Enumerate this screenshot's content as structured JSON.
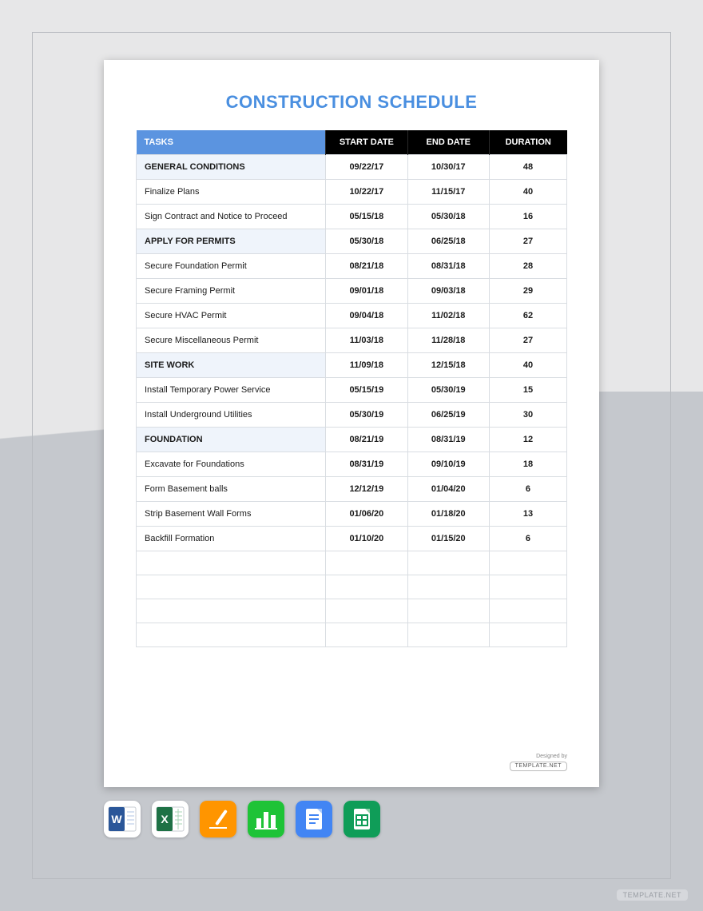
{
  "title": "CONSTRUCTION SCHEDULE",
  "colors": {
    "title": "#4a8fe0",
    "header_tasks_bg": "#5b94e0",
    "header_other_bg": "#000000",
    "section_bg": "#eff4fb",
    "border": "#d9dde2",
    "page_bg": "#ffffff",
    "outer_bg_top": "#e7e7e8",
    "outer_bg_bottom": "#c5c8cd"
  },
  "table": {
    "columns": [
      "TASKS",
      "START DATE",
      "END DATE",
      "DURATION"
    ],
    "rows": [
      {
        "type": "section",
        "task": "GENERAL CONDITIONS",
        "start": "09/22/17",
        "end": "10/30/17",
        "dur": "48"
      },
      {
        "type": "item",
        "task": "Finalize Plans",
        "start": "10/22/17",
        "end": "11/15/17",
        "dur": "40"
      },
      {
        "type": "item",
        "task": "Sign Contract and Notice to Proceed",
        "start": "05/15/18",
        "end": "05/30/18",
        "dur": "16"
      },
      {
        "type": "section",
        "task": "APPLY FOR PERMITS",
        "start": "05/30/18",
        "end": "06/25/18",
        "dur": "27"
      },
      {
        "type": "item",
        "task": "Secure Foundation Permit",
        "start": "08/21/18",
        "end": "08/31/18",
        "dur": "28"
      },
      {
        "type": "item",
        "task": "Secure Framing Permit",
        "start": "09/01/18",
        "end": "09/03/18",
        "dur": "29"
      },
      {
        "type": "item",
        "task": "Secure HVAC Permit",
        "start": "09/04/18",
        "end": "11/02/18",
        "dur": "62"
      },
      {
        "type": "item",
        "task": "Secure Miscellaneous Permit",
        "start": "11/03/18",
        "end": "11/28/18",
        "dur": "27"
      },
      {
        "type": "section",
        "task": "SITE WORK",
        "start": "11/09/18",
        "end": "12/15/18",
        "dur": "40"
      },
      {
        "type": "item",
        "task": "Install Temporary Power Service",
        "start": "05/15/19",
        "end": "05/30/19",
        "dur": "15"
      },
      {
        "type": "item",
        "task": "Install Underground Utilities",
        "start": "05/30/19",
        "end": "06/25/19",
        "dur": "30"
      },
      {
        "type": "section",
        "task": "FOUNDATION",
        "start": "08/21/19",
        "end": "08/31/19",
        "dur": "12"
      },
      {
        "type": "item",
        "task": "Excavate for Foundations",
        "start": "08/31/19",
        "end": "09/10/19",
        "dur": "18"
      },
      {
        "type": "item",
        "task": "Form Basement balls",
        "start": "12/12/19",
        "end": "01/04/20",
        "dur": "6"
      },
      {
        "type": "item",
        "task": "Strip Basement Wall Forms",
        "start": "01/06/20",
        "end": "01/18/20",
        "dur": "13"
      },
      {
        "type": "item",
        "task": "Backfill Formation",
        "start": "01/10/20",
        "end": "01/15/20",
        "dur": "6"
      },
      {
        "type": "empty"
      },
      {
        "type": "empty"
      },
      {
        "type": "empty"
      },
      {
        "type": "empty"
      }
    ]
  },
  "credit": {
    "label": "Designed by",
    "brand": "TEMPLATE.NET"
  },
  "icons": [
    {
      "name": "word-icon",
      "bg": "#ffffff",
      "accent": "#2a5699"
    },
    {
      "name": "excel-icon",
      "bg": "#ffffff",
      "accent": "#1e7145"
    },
    {
      "name": "pages-icon",
      "bg": "#ff9500",
      "accent": "#ffffff"
    },
    {
      "name": "numbers-icon",
      "bg": "#1ec337",
      "accent": "#ffffff"
    },
    {
      "name": "gdocs-icon",
      "bg": "#4285f4",
      "accent": "#ffffff"
    },
    {
      "name": "gsheets-icon",
      "bg": "#0f9d58",
      "accent": "#ffffff"
    }
  ],
  "watermark": "TEMPLATE.NET"
}
